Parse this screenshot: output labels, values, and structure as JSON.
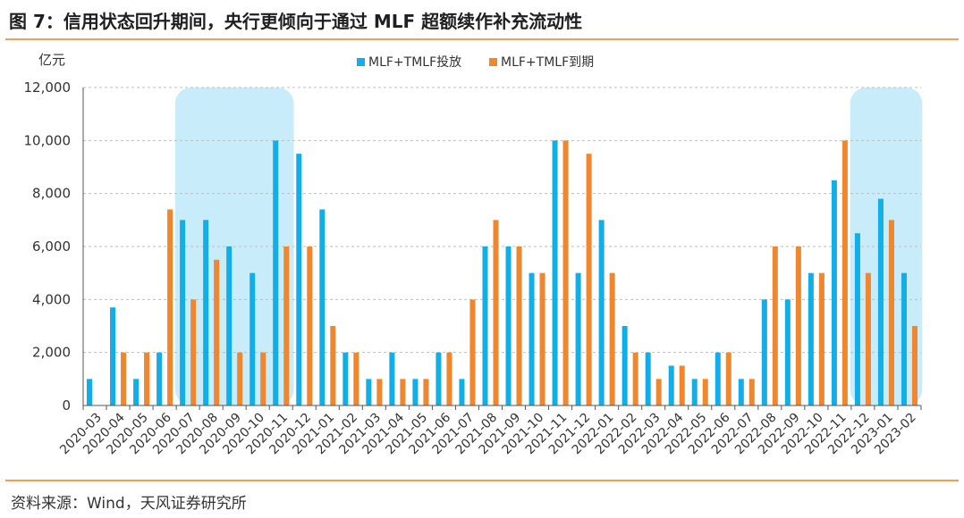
{
  "title": "图 7：信用状态回升期间，央行更倾向于通过 MLF 超额续作补充流动性",
  "source": "资料来源：Wind，天风证券研究所",
  "colors": {
    "issue": "#12aee8",
    "expire": "#f0862e",
    "highlight": "#c8ecf9",
    "rule": "#e8a15a"
  },
  "chart_data": {
    "type": "bar",
    "ylabel": "亿元",
    "ylim": [
      0,
      12000
    ],
    "yticks": [
      "0",
      "2,000",
      "4,000",
      "6,000",
      "8,000",
      "10,000",
      "12,000"
    ],
    "grid": true,
    "legend_position": "top",
    "categories": [
      "2020-03",
      "2020-04",
      "2020-05",
      "2020-06",
      "2020-07",
      "2020-08",
      "2020-09",
      "2020-10",
      "2020-11",
      "2020-12",
      "2021-01",
      "2021-02",
      "2021-03",
      "2021-04",
      "2021-05",
      "2021-06",
      "2021-07",
      "2021-08",
      "2021-09",
      "2021-10",
      "2021-11",
      "2021-12",
      "2022-01",
      "2022-02",
      "2022-03",
      "2022-04",
      "2022-05",
      "2022-06",
      "2022-07",
      "2022-08",
      "2022-09",
      "2022-10",
      "2022-11",
      "2022-12",
      "2023-01",
      "2023-02"
    ],
    "series": [
      {
        "name": "MLF+TMLF投放",
        "values": [
          1000,
          3700,
          1000,
          2000,
          7000,
          7000,
          6000,
          5000,
          10000,
          9500,
          7400,
          2000,
          1000,
          2000,
          1000,
          2000,
          1000,
          6000,
          6000,
          5000,
          10000,
          5000,
          7000,
          3000,
          2000,
          1500,
          1000,
          2000,
          1000,
          4000,
          4000,
          5000,
          8500,
          6500,
          7800,
          5000
        ]
      },
      {
        "name": "MLF+TMLF到期",
        "values": [
          0,
          2000,
          2000,
          7400,
          4000,
          5500,
          2000,
          2000,
          6000,
          6000,
          3000,
          2000,
          1000,
          1000,
          1000,
          2000,
          4000,
          7000,
          6000,
          5000,
          10000,
          9500,
          5000,
          2000,
          1000,
          1500,
          1000,
          2000,
          1000,
          6000,
          6000,
          5000,
          10000,
          5000,
          7000,
          3000
        ]
      }
    ],
    "highlight_ranges": [
      [
        "2020-07",
        "2020-11"
      ],
      [
        "2022-12",
        "2023-02"
      ]
    ]
  }
}
